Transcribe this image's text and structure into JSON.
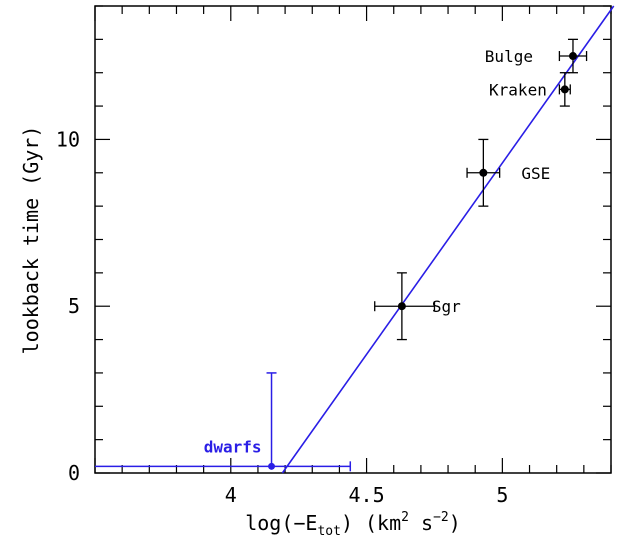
{
  "chart_data": {
    "type": "scatter",
    "xlabel": {
      "pre": "log(−E",
      "sub": "tot",
      "post": ") (km",
      "sup1": "2",
      "mid": " s",
      "sup2": "−2",
      "end": ")"
    },
    "ylabel": "lookback time (Gyr)",
    "xlim": [
      3.5,
      5.4
    ],
    "ylim": [
      0,
      14
    ],
    "x_ticks": [
      4,
      4.5,
      5
    ],
    "x_tick_labels": [
      "4",
      "4.5",
      "5"
    ],
    "y_ticks": [
      0,
      5,
      10
    ],
    "y_tick_labels": [
      "0",
      "5",
      "10"
    ],
    "colors": {
      "points": "#000000",
      "fit": "#2a1ee6",
      "dwarfs": "#2a1ee6"
    },
    "points": [
      {
        "label": "Sgr",
        "x": 4.63,
        "y": 5.0,
        "xerr_lo": 0.1,
        "xerr_hi": 0.12,
        "yerr_lo": 1.0,
        "yerr_hi": 1.0
      },
      {
        "label": "GSE",
        "x": 4.93,
        "y": 9.0,
        "xerr_lo": 0.06,
        "xerr_hi": 0.06,
        "yerr_lo": 1.0,
        "yerr_hi": 1.0
      },
      {
        "label": "Kraken",
        "x": 5.23,
        "y": 11.5,
        "xerr_lo": 0.02,
        "xerr_hi": 0.02,
        "yerr_lo": 0.5,
        "yerr_hi": 0.5
      },
      {
        "label": "Bulge",
        "x": 5.26,
        "y": 12.5,
        "xerr_lo": 0.05,
        "xerr_hi": 0.05,
        "yerr_lo": 0.5,
        "yerr_hi": 0.5
      }
    ],
    "dwarfs": {
      "label": "dwarfs",
      "x": 4.15,
      "y": 0.2,
      "x_lo": 3.5,
      "x_hi": 4.44,
      "y_hi": 3.0
    },
    "fit_line": {
      "x0": 4.19,
      "y0": 0.0,
      "x1": 5.41,
      "y1": 14.0
    }
  }
}
